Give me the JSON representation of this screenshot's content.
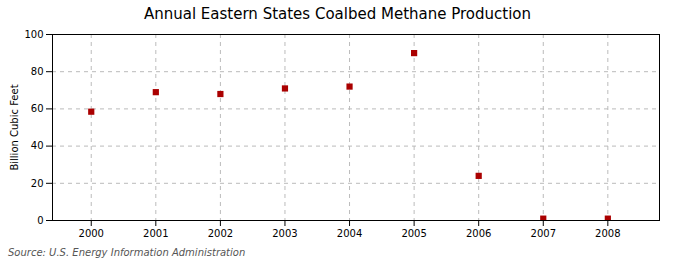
{
  "chart_data": {
    "type": "scatter",
    "title": "Annual Eastern States Coalbed Methane Production",
    "ylabel": "Billion Cubic Feet",
    "caption": "Source: U.S. Energy Information Administration",
    "x": [
      2000,
      2001,
      2002,
      2003,
      2004,
      2005,
      2006,
      2007,
      2008
    ],
    "values": [
      58.5,
      69.0,
      68.0,
      71.0,
      72.0,
      90.0,
      24.0,
      1.0,
      1.0
    ],
    "xlim": [
      1999.4,
      2008.8
    ],
    "ylim": [
      0,
      100
    ],
    "xticks": [
      2000,
      2001,
      2002,
      2003,
      2004,
      2005,
      2006,
      2007,
      2008
    ],
    "yticks": [
      0,
      20,
      40,
      60,
      80,
      100
    ],
    "color": "#aa0000",
    "marker": "square",
    "grid": true
  }
}
